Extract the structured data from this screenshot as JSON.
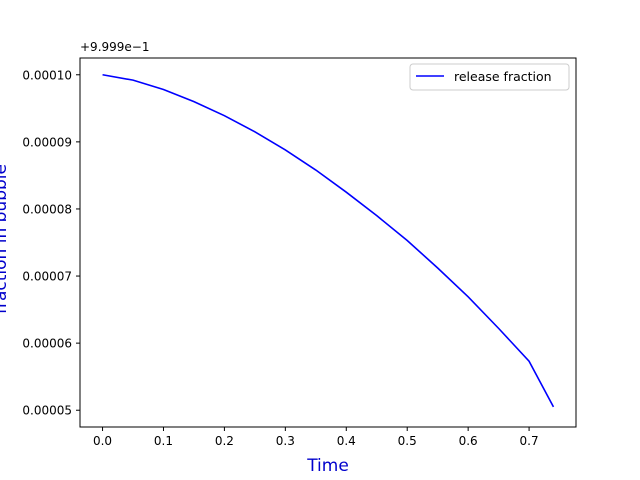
{
  "chart_data": {
    "type": "line",
    "xlabel": "Time",
    "ylabel": "fraction in bubble",
    "offset_text": "+9.999e−1",
    "label_color": "#0000cc",
    "xlim": [
      -0.037,
      0.777
    ],
    "ylim": [
      4.75e-05,
      0.0001025
    ],
    "x_ticks": [
      0.0,
      0.1,
      0.2,
      0.3,
      0.4,
      0.5,
      0.6,
      0.7
    ],
    "x_tick_labels": [
      "0.0",
      "0.1",
      "0.2",
      "0.3",
      "0.4",
      "0.5",
      "0.6",
      "0.7"
    ],
    "y_ticks": [
      5e-05,
      6e-05,
      7e-05,
      8e-05,
      9e-05,
      0.0001
    ],
    "y_tick_labels": [
      "0.00005",
      "0.00006",
      "0.00007",
      "0.00008",
      "0.00009",
      "0.00010"
    ],
    "grid": false,
    "legend_position": "upper right",
    "series": [
      {
        "name": "release fraction",
        "color": "#0000ff",
        "x": [
          0.0,
          0.05,
          0.1,
          0.15,
          0.2,
          0.25,
          0.3,
          0.35,
          0.4,
          0.45,
          0.5,
          0.55,
          0.6,
          0.65,
          0.7,
          0.74
        ],
        "y": [
          0.0001,
          9.92e-05,
          9.78e-05,
          9.6e-05,
          9.39e-05,
          9.15e-05,
          8.88e-05,
          8.58e-05,
          8.25e-05,
          7.9e-05,
          7.53e-05,
          7.12e-05,
          6.69e-05,
          6.22e-05,
          5.73e-05,
          5.05e-05
        ]
      }
    ]
  }
}
